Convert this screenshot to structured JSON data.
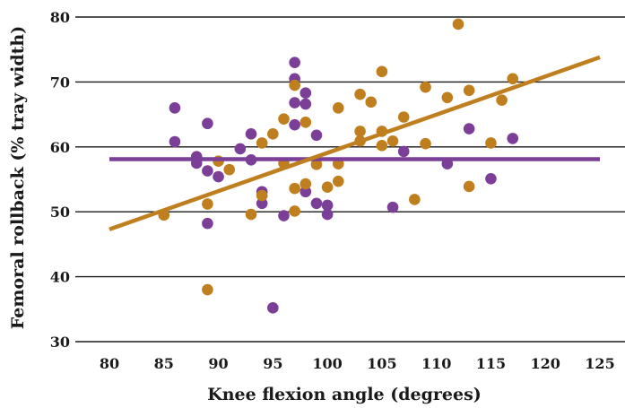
{
  "chart_data": {
    "type": "scatter",
    "title": "",
    "xlabel": "Knee flexion angle (degrees)",
    "ylabel": "Femoral rollback (% tray width)",
    "xlim": [
      80,
      125
    ],
    "ylim": [
      30,
      80
    ],
    "xticks": [
      "80",
      "85",
      "90",
      "95",
      "100",
      "105",
      "110",
      "115",
      "120",
      "125"
    ],
    "yticks": [
      "30",
      "40",
      "50",
      "60",
      "70",
      "80"
    ],
    "grid": "horizontal",
    "colors": {
      "purple": "#7b3f98",
      "orange": "#c07f1f"
    },
    "series": [
      {
        "color": "#7b3f98",
        "points": [
          [
            86,
            66.0
          ],
          [
            86,
            60.8
          ],
          [
            88,
            58.5
          ],
          [
            88,
            57.5
          ],
          [
            89,
            63.6
          ],
          [
            89,
            56.3
          ],
          [
            89,
            48.2
          ],
          [
            90,
            55.4
          ],
          [
            92,
            59.7
          ],
          [
            93,
            62.0
          ],
          [
            93,
            58.0
          ],
          [
            94,
            53.1
          ],
          [
            94,
            51.3
          ],
          [
            95,
            35.2
          ],
          [
            96,
            49.4
          ],
          [
            97,
            73.0
          ],
          [
            97,
            70.5
          ],
          [
            97,
            66.8
          ],
          [
            97,
            63.4
          ],
          [
            98,
            68.3
          ],
          [
            98,
            66.6
          ],
          [
            98,
            53.1
          ],
          [
            99,
            61.8
          ],
          [
            99,
            51.3
          ],
          [
            100,
            51.0
          ],
          [
            100,
            49.6
          ],
          [
            106,
            50.7
          ],
          [
            107,
            59.3
          ],
          [
            111,
            57.4
          ],
          [
            113,
            62.8
          ],
          [
            115,
            55.1
          ],
          [
            117,
            61.3
          ]
        ],
        "fit": [
          [
            80,
            58.1
          ],
          [
            125,
            58.1
          ]
        ]
      },
      {
        "color": "#c07f1f",
        "points": [
          [
            85,
            49.5
          ],
          [
            89,
            51.2
          ],
          [
            89,
            38.0
          ],
          [
            90,
            57.8
          ],
          [
            91,
            56.5
          ],
          [
            93,
            49.6
          ],
          [
            94,
            60.6
          ],
          [
            94,
            52.5
          ],
          [
            95,
            62.0
          ],
          [
            96,
            64.3
          ],
          [
            96,
            57.5
          ],
          [
            97,
            69.5
          ],
          [
            97,
            53.6
          ],
          [
            97,
            50.1
          ],
          [
            98,
            63.8
          ],
          [
            98,
            54.3
          ],
          [
            99,
            57.3
          ],
          [
            100,
            53.8
          ],
          [
            101,
            66.0
          ],
          [
            101,
            57.4
          ],
          [
            101,
            54.7
          ],
          [
            103,
            68.1
          ],
          [
            103,
            62.4
          ],
          [
            103,
            60.9
          ],
          [
            104,
            66.9
          ],
          [
            105,
            71.6
          ],
          [
            105,
            62.4
          ],
          [
            105,
            60.2
          ],
          [
            106,
            60.9
          ],
          [
            107,
            64.6
          ],
          [
            108,
            51.9
          ],
          [
            109,
            69.2
          ],
          [
            109,
            60.5
          ],
          [
            111,
            67.6
          ],
          [
            112,
            78.9
          ],
          [
            113,
            68.7
          ],
          [
            113,
            53.9
          ],
          [
            115,
            60.6
          ],
          [
            116,
            67.2
          ],
          [
            117,
            70.5
          ]
        ],
        "fit": [
          [
            80,
            47.3
          ],
          [
            125,
            73.8
          ]
        ]
      }
    ]
  }
}
